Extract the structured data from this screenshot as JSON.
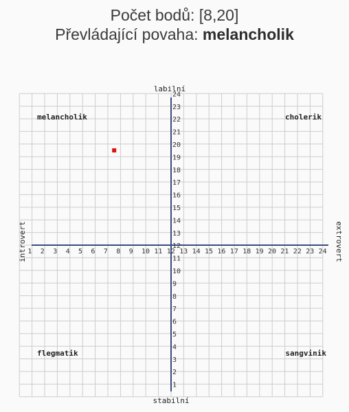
{
  "header": {
    "score_label": "Počet bodů: ",
    "score_value": "[8,20]",
    "temperament_label": "Převládající povaha: ",
    "temperament_value": "melancholik"
  },
  "chart_data": {
    "type": "scatter",
    "title": "",
    "x": [
      8
    ],
    "y": [
      20
    ],
    "xlim": [
      0,
      24
    ],
    "ylim": [
      0,
      24
    ],
    "x_ticks": [
      1,
      2,
      3,
      4,
      5,
      6,
      7,
      8,
      9,
      10,
      11,
      12,
      13,
      14,
      15,
      16,
      17,
      18,
      19,
      20,
      21,
      22,
      23,
      24
    ],
    "y_ticks": [
      1,
      2,
      3,
      4,
      5,
      6,
      7,
      8,
      9,
      10,
      11,
      12,
      13,
      14,
      15,
      16,
      17,
      18,
      19,
      20,
      21,
      22,
      23,
      24
    ],
    "axis_labels": {
      "top": "labilní",
      "bottom": "stabilní",
      "left": "introvert",
      "right": "extrovert"
    },
    "quadrants": {
      "top_left": "melancholik",
      "top_right": "cholerik",
      "bottom_left": "flegmatik",
      "bottom_right": "sangvinik"
    },
    "grid": true,
    "colors": {
      "grid": "#cccccc",
      "axis": "#3b4a7a",
      "point": "#dd1111"
    }
  }
}
